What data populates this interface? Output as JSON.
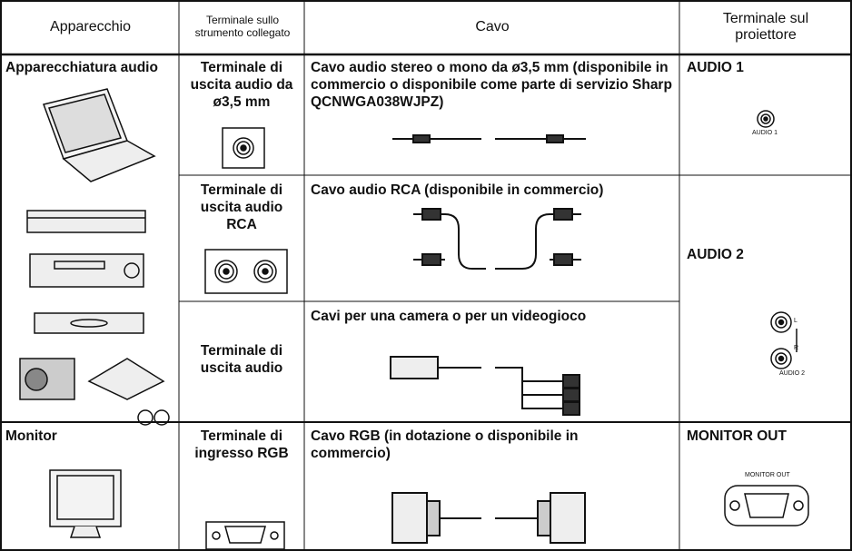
{
  "table": {
    "header": [
      "Apparecchio",
      "Terminale sullo strumento collegato",
      "Cavo",
      "Terminale sul proiettore"
    ],
    "rows": [
      {
        "device": "Apparecchiatura audio",
        "terminal": "Terminale di uscita audio da ø3,5 mm",
        "cable": "Cavo audio stereo o mono da ø3,5 mm (disponibile in commercio o disponibile come parte di servizio Sharp QCNWGA038WJPZ)",
        "projector": "AUDIO 1",
        "jack_labels": [
          "AUDIO 1"
        ]
      },
      {
        "terminal": "Terminale di uscita audio RCA",
        "cable": "Cavo audio RCA (disponibile in commercio)",
        "projector": "AUDIO 2",
        "jack_labels": [
          "L",
          "R",
          "AUDIO 2"
        ]
      },
      {
        "terminal": "Terminale di uscita audio",
        "cable": "Cavi per una camera o per un videogioco"
      },
      {
        "device": "Monitor",
        "terminal": "Terminale di ingresso RGB",
        "cable": "Cavo RGB (in dotazione o disponibile in commercio)",
        "projector": "MONITOR OUT",
        "jack_labels": [
          "MONITOR OUT"
        ]
      }
    ]
  }
}
